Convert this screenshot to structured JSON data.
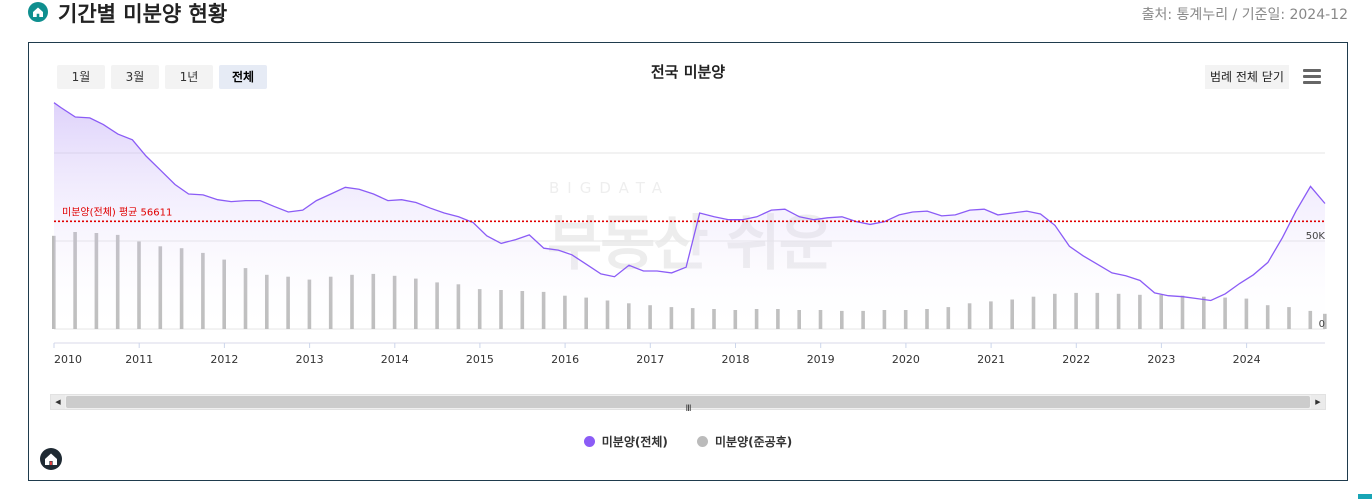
{
  "header": {
    "title": "기간별 미분양 현황",
    "source": "출처: 통계누리 / 기준일: 2024-12",
    "icon": "home-icon",
    "icon_color": "#0f8f8f"
  },
  "toolbar": {
    "ranges": [
      {
        "label": "1월",
        "active": false
      },
      {
        "label": "3월",
        "active": false
      },
      {
        "label": "1년",
        "active": false
      },
      {
        "label": "전체",
        "active": true
      }
    ],
    "legend_close_label": "범례 전체 닫기",
    "menu_icon": "hamburger-menu-icon"
  },
  "scrollbar": {
    "grip": "III"
  },
  "watermark": {
    "small": "BIGDATA",
    "big": "부동산 쉬운"
  },
  "footer": {
    "logo_icon": "home-logo-icon"
  },
  "chart_data": {
    "type": "line",
    "title": "전국 미분양",
    "xlabel": "",
    "ylabel": "",
    "x_tick_labels": [
      "2010",
      "2011",
      "2012",
      "2013",
      "2014",
      "2015",
      "2016",
      "2017",
      "2018",
      "2019",
      "2020",
      "2021",
      "2022",
      "2023",
      "2024"
    ],
    "y_tick_labels": [
      "0",
      "50K"
    ],
    "ylim": [
      0,
      122000
    ],
    "x_range": [
      2010.0,
      2024.92
    ],
    "grid": true,
    "legend_position": "bottom",
    "average_line": {
      "label": "미분양(전체) 평균 56611",
      "value": 56611,
      "color": "#e00000"
    },
    "colors": {
      "total": "#8b5cf6",
      "completed": "#bbbbbb"
    },
    "series": [
      {
        "name": "미분양(전체)",
        "kind": "area",
        "points": [
          [
            2010.0,
            119000
          ],
          [
            2010.08,
            116500
          ],
          [
            2010.25,
            111500
          ],
          [
            2010.42,
            111000
          ],
          [
            2010.58,
            107500
          ],
          [
            2010.75,
            102500
          ],
          [
            2010.92,
            99500
          ],
          [
            2011.08,
            91000
          ],
          [
            2011.25,
            83500
          ],
          [
            2011.42,
            76000
          ],
          [
            2011.58,
            71000
          ],
          [
            2011.75,
            70500
          ],
          [
            2011.92,
            68000
          ],
          [
            2012.08,
            67000
          ],
          [
            2012.25,
            67500
          ],
          [
            2012.42,
            67500
          ],
          [
            2012.58,
            64500
          ],
          [
            2012.75,
            61500
          ],
          [
            2012.92,
            62500
          ],
          [
            2013.08,
            67500
          ],
          [
            2013.25,
            71000
          ],
          [
            2013.42,
            74500
          ],
          [
            2013.58,
            73500
          ],
          [
            2013.75,
            71000
          ],
          [
            2013.92,
            67500
          ],
          [
            2014.08,
            68000
          ],
          [
            2014.25,
            66500
          ],
          [
            2014.42,
            63500
          ],
          [
            2014.58,
            61000
          ],
          [
            2014.75,
            59000
          ],
          [
            2014.92,
            56000
          ],
          [
            2015.08,
            49000
          ],
          [
            2015.25,
            45000
          ],
          [
            2015.42,
            47000
          ],
          [
            2015.58,
            49500
          ],
          [
            2015.75,
            42500
          ],
          [
            2015.92,
            41500
          ],
          [
            2016.08,
            39000
          ],
          [
            2016.25,
            34000
          ],
          [
            2016.42,
            29000
          ],
          [
            2016.58,
            27500
          ],
          [
            2016.75,
            33500
          ],
          [
            2016.92,
            30500
          ],
          [
            2017.08,
            30500
          ],
          [
            2017.25,
            29500
          ],
          [
            2017.42,
            32500
          ],
          [
            2017.58,
            61000
          ],
          [
            2017.75,
            59000
          ],
          [
            2017.92,
            57500
          ],
          [
            2018.08,
            57500
          ],
          [
            2018.25,
            59000
          ],
          [
            2018.42,
            62500
          ],
          [
            2018.58,
            63000
          ],
          [
            2018.75,
            59000
          ],
          [
            2018.92,
            57500
          ],
          [
            2019.08,
            58500
          ],
          [
            2019.25,
            59000
          ],
          [
            2019.42,
            56500
          ],
          [
            2019.58,
            55000
          ],
          [
            2019.75,
            56500
          ],
          [
            2019.92,
            60000
          ],
          [
            2020.08,
            61500
          ],
          [
            2020.25,
            62000
          ],
          [
            2020.42,
            59500
          ],
          [
            2020.58,
            60000
          ],
          [
            2020.75,
            62500
          ],
          [
            2020.92,
            63000
          ],
          [
            2021.08,
            60000
          ],
          [
            2021.25,
            61000
          ],
          [
            2021.42,
            62000
          ],
          [
            2021.58,
            60500
          ],
          [
            2021.75,
            54500
          ],
          [
            2021.92,
            43500
          ],
          [
            2022.08,
            38500
          ],
          [
            2022.25,
            34000
          ],
          [
            2022.42,
            29500
          ],
          [
            2022.58,
            28000
          ],
          [
            2022.75,
            25500
          ],
          [
            2022.92,
            19000
          ],
          [
            2023.08,
            17500
          ],
          [
            2023.25,
            17000
          ],
          [
            2023.42,
            16000
          ],
          [
            2023.58,
            15000
          ],
          [
            2023.75,
            18500
          ],
          [
            2023.92,
            24000
          ],
          [
            2024.08,
            28500
          ],
          [
            2024.25,
            35000
          ],
          [
            2024.42,
            48000
          ],
          [
            2024.58,
            62000
          ],
          [
            2024.75,
            75000
          ],
          [
            2024.92,
            66000
          ]
        ]
      },
      {
        "name": "미분양(준공후)",
        "kind": "bar",
        "points": [
          [
            2010.0,
            49000
          ],
          [
            2010.25,
            51000
          ],
          [
            2010.5,
            50500
          ],
          [
            2010.75,
            49500
          ],
          [
            2011.0,
            46000
          ],
          [
            2011.25,
            43500
          ],
          [
            2011.5,
            42500
          ],
          [
            2011.75,
            40000
          ],
          [
            2012.0,
            36500
          ],
          [
            2012.25,
            32000
          ],
          [
            2012.5,
            28500
          ],
          [
            2012.75,
            27500
          ],
          [
            2013.0,
            26000
          ],
          [
            2013.25,
            27500
          ],
          [
            2013.5,
            28500
          ],
          [
            2013.75,
            29000
          ],
          [
            2014.0,
            28000
          ],
          [
            2014.25,
            26500
          ],
          [
            2014.5,
            24500
          ],
          [
            2014.75,
            23500
          ],
          [
            2015.0,
            21000
          ],
          [
            2015.25,
            20500
          ],
          [
            2015.5,
            20000
          ],
          [
            2015.75,
            19500
          ],
          [
            2016.0,
            17500
          ],
          [
            2016.25,
            16500
          ],
          [
            2016.5,
            15000
          ],
          [
            2016.75,
            13500
          ],
          [
            2017.0,
            12500
          ],
          [
            2017.25,
            11500
          ],
          [
            2017.5,
            11000
          ],
          [
            2017.75,
            10500
          ],
          [
            2018.0,
            10000
          ],
          [
            2018.25,
            10500
          ],
          [
            2018.5,
            10500
          ],
          [
            2018.75,
            10000
          ],
          [
            2019.0,
            10000
          ],
          [
            2019.25,
            9500
          ],
          [
            2019.5,
            9500
          ],
          [
            2019.75,
            10000
          ],
          [
            2020.0,
            10000
          ],
          [
            2020.25,
            10500
          ],
          [
            2020.5,
            11500
          ],
          [
            2020.75,
            13500
          ],
          [
            2021.0,
            14500
          ],
          [
            2021.25,
            15500
          ],
          [
            2021.5,
            17000
          ],
          [
            2021.75,
            18500
          ],
          [
            2022.0,
            19000
          ],
          [
            2022.25,
            19000
          ],
          [
            2022.5,
            18500
          ],
          [
            2022.75,
            18000
          ],
          [
            2023.0,
            18000
          ],
          [
            2023.25,
            17500
          ],
          [
            2023.5,
            17000
          ],
          [
            2023.75,
            16500
          ],
          [
            2024.0,
            16000
          ],
          [
            2024.25,
            12500
          ],
          [
            2024.5,
            11500
          ],
          [
            2024.75,
            9500
          ],
          [
            2024.92,
            8000
          ]
        ]
      }
    ]
  }
}
